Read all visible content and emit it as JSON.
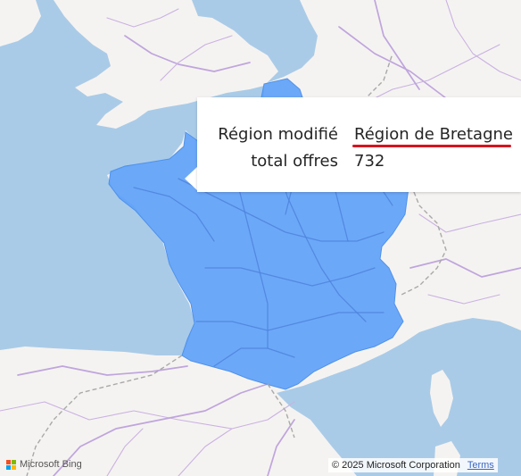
{
  "map": {
    "provider": "Microsoft Bing",
    "copyright": "© 2025 Microsoft Corporation",
    "terms_label": "Terms",
    "highlight_color": "#5fa2f8",
    "water_color": "#aacbe7",
    "land_color": "#f5f3f1",
    "road_color": "#c9b2e2"
  },
  "tooltip": {
    "rows": [
      {
        "label": "Région modifié",
        "value": "Région de Bretagne"
      },
      {
        "label": "total offres",
        "value": "732"
      }
    ],
    "underline_color": "#d6141e"
  },
  "icons": {
    "logo": "microsoft-logo-icon"
  }
}
